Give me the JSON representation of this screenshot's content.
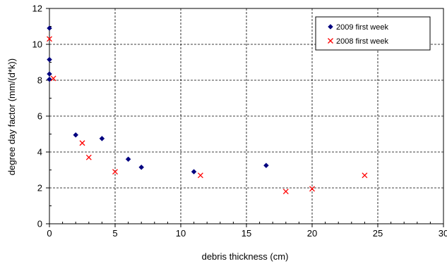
{
  "chart_data": {
    "type": "scatter",
    "title": "",
    "xlabel": "debris thickness (cm)",
    "ylabel": "degree day factor (mm/(d*k))",
    "xlim": [
      0,
      30
    ],
    "ylim": [
      0,
      12
    ],
    "xticks": [
      "0",
      "5",
      "10",
      "15",
      "20",
      "25",
      "30"
    ],
    "yticks": [
      "0",
      "2",
      "4",
      "6",
      "8",
      "10",
      "12"
    ],
    "grid": true,
    "legend_position": "top-right",
    "series": [
      {
        "name": "2009 first week",
        "marker": "diamond",
        "color": "#000080",
        "points": [
          {
            "x": 0,
            "y": 10.9
          },
          {
            "x": 0,
            "y": 9.15
          },
          {
            "x": 0,
            "y": 8.35
          },
          {
            "x": 0,
            "y": 8.05
          },
          {
            "x": 2,
            "y": 4.95
          },
          {
            "x": 4,
            "y": 4.75
          },
          {
            "x": 6,
            "y": 3.6
          },
          {
            "x": 7,
            "y": 3.15
          },
          {
            "x": 11,
            "y": 2.9
          },
          {
            "x": 16.5,
            "y": 3.25
          }
        ]
      },
      {
        "name": "2008 first week",
        "marker": "x",
        "color": "#ff0000",
        "points": [
          {
            "x": 0,
            "y": 10.3
          },
          {
            "x": 0.3,
            "y": 8.1
          },
          {
            "x": 2.5,
            "y": 4.5
          },
          {
            "x": 3,
            "y": 3.7
          },
          {
            "x": 5,
            "y": 2.9
          },
          {
            "x": 11.5,
            "y": 2.7
          },
          {
            "x": 18,
            "y": 1.8
          },
          {
            "x": 20,
            "y": 1.95
          },
          {
            "x": 24,
            "y": 2.7
          }
        ]
      }
    ]
  }
}
